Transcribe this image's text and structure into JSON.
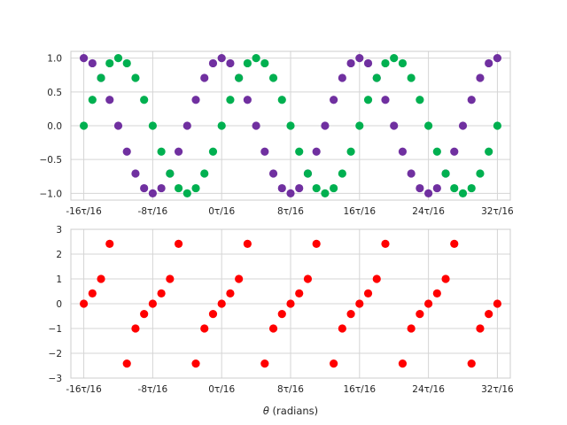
{
  "chart_data": {
    "type": "scatter",
    "xlabel": "θ (radians)",
    "xlabel_symbol": "θ",
    "xlabel_rest": " (radians)",
    "x_tick_labels": [
      "-16τ/16",
      "-8τ/16",
      "0τ/16",
      "8τ/16",
      "16τ/16",
      "24τ/16",
      "32τ/16"
    ],
    "x_tick_values": [
      -16,
      -8,
      0,
      8,
      16,
      24,
      32
    ],
    "x_points": [
      -16,
      -15,
      -14,
      -13,
      -12,
      -11,
      -10,
      -9,
      -8,
      -7,
      -6,
      -5,
      -4,
      -3,
      -2,
      -1,
      0,
      1,
      2,
      3,
      4,
      5,
      6,
      7,
      8,
      9,
      10,
      11,
      12,
      13,
      14,
      15,
      16,
      17,
      18,
      19,
      20,
      21,
      22,
      23,
      24,
      25,
      26,
      27,
      28,
      29,
      30,
      31,
      32
    ],
    "grid": true,
    "panels": [
      {
        "name": "top",
        "ylim": [
          -1.1,
          1.1
        ],
        "y_ticks": [
          -1.0,
          -0.5,
          0.0,
          0.5,
          1.0
        ],
        "y_tick_labels": [
          "−1.0",
          "−0.5",
          "0.0",
          "0.5",
          "1.0"
        ],
        "series": [
          {
            "color": "#7030a0",
            "values": [
              1.0,
              0.924,
              0.707,
              0.383,
              0.0,
              -0.383,
              -0.707,
              -0.924,
              -1.0,
              -0.924,
              -0.707,
              -0.383,
              0.0,
              0.383,
              0.707,
              0.924,
              1.0,
              0.924,
              0.707,
              0.383,
              0.0,
              -0.383,
              -0.707,
              -0.924,
              -1.0,
              -0.924,
              -0.707,
              -0.383,
              0.0,
              0.383,
              0.707,
              0.924,
              1.0,
              0.924,
              0.707,
              0.383,
              0.0,
              -0.383,
              -0.707,
              -0.924,
              -1.0,
              -0.924,
              -0.707,
              -0.383,
              0.0,
              0.383,
              0.707,
              0.924,
              1.0
            ]
          },
          {
            "color": "#00b050",
            "values": [
              0.0,
              0.383,
              0.707,
              0.924,
              1.0,
              0.924,
              0.707,
              0.383,
              0.0,
              -0.383,
              -0.707,
              -0.924,
              -1.0,
              -0.924,
              -0.707,
              -0.383,
              0.0,
              0.383,
              0.707,
              0.924,
              1.0,
              0.924,
              0.707,
              0.383,
              0.0,
              -0.383,
              -0.707,
              -0.924,
              -1.0,
              -0.924,
              -0.707,
              -0.383,
              0.0,
              0.383,
              0.707,
              0.924,
              1.0,
              0.924,
              0.707,
              0.383,
              0.0,
              -0.383,
              -0.707,
              -0.924,
              -1.0,
              -0.924,
              -0.707,
              -0.383,
              0.0
            ]
          }
        ]
      },
      {
        "name": "bottom",
        "ylim": [
          -3,
          3
        ],
        "y_ticks": [
          -3,
          -2,
          -1,
          0,
          1,
          2,
          3
        ],
        "y_tick_labels": [
          "−3",
          "−2",
          "−1",
          "0",
          "1",
          "2",
          "3"
        ],
        "series": [
          {
            "color": "#ff0000",
            "values": [
              0.0,
              0.414,
              1.0,
              2.414,
              null,
              -2.414,
              -1.0,
              -0.414,
              0.0,
              0.414,
              1.0,
              2.414,
              null,
              -2.414,
              -1.0,
              -0.414,
              0.0,
              0.414,
              1.0,
              2.414,
              null,
              -2.414,
              -1.0,
              -0.414,
              0.0,
              0.414,
              1.0,
              2.414,
              null,
              -2.414,
              -1.0,
              -0.414,
              0.0,
              0.414,
              1.0,
              2.414,
              null,
              -2.414,
              -1.0,
              -0.414,
              0.0,
              0.414,
              1.0,
              2.414,
              null,
              -2.414,
              -1.0,
              -0.414,
              0.0
            ]
          }
        ]
      }
    ]
  }
}
